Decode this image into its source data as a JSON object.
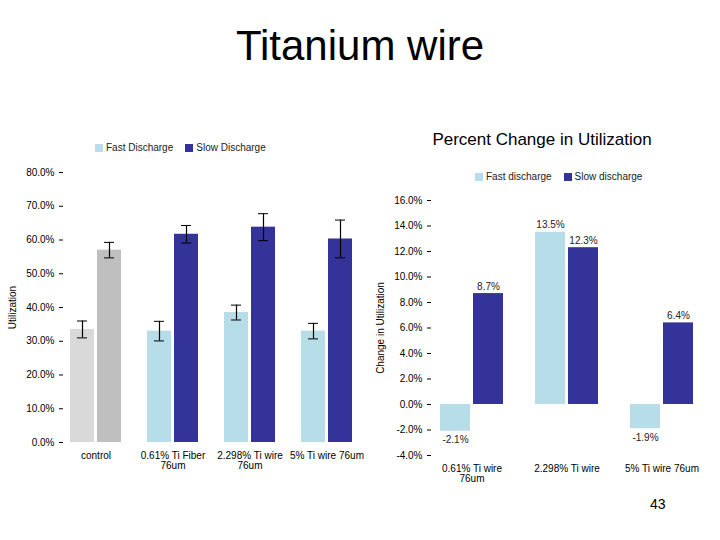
{
  "title": "Titanium wire",
  "page_number": 43,
  "chart_data": [
    {
      "type": "bar",
      "legend": "top",
      "ylabel": "Utilization",
      "categories": [
        "control",
        "0.61% Ti Fiber 76um",
        "2.298% Ti wire 76um",
        "5% Ti wire 76um"
      ],
      "series": [
        {
          "name": "Fast Discharge",
          "color": "#b7dde8",
          "colors": [
            "#d9d9d9",
            "#b7dde8",
            "#b7dde8",
            "#b7dde8"
          ],
          "values": [
            33.5,
            33,
            38.5,
            33
          ],
          "errors": [
            2.5,
            2.9,
            2.2,
            2.3
          ]
        },
        {
          "name": "Slow Discharge",
          "color": "#333399",
          "colors": [
            "#bfbfbf",
            "#333399",
            "#333399",
            "#333399"
          ],
          "values": [
            57,
            61.7,
            63.8,
            60.3
          ],
          "errors": [
            2.3,
            2.6,
            4,
            5.6
          ]
        }
      ],
      "ylim": [
        0,
        80
      ],
      "yticks": [
        {
          "value": 0,
          "label": "0.0%"
        },
        {
          "value": 10,
          "label": "10.0%"
        },
        {
          "value": 20,
          "label": "20.0%"
        },
        {
          "value": 30,
          "label": "30.0%"
        },
        {
          "value": 40,
          "label": "40.0%"
        },
        {
          "value": 50,
          "label": "50.0%"
        },
        {
          "value": 60,
          "label": "60.0%"
        },
        {
          "value": 70,
          "label": "70.0%"
        },
        {
          "value": 80,
          "label": "80.0%"
        }
      ]
    },
    {
      "type": "bar",
      "title": "Percent Change in Utilization",
      "legend": "top",
      "ylabel": "Change in Utilization",
      "data_labels": true,
      "categories": [
        "0.61% Ti wire 76um",
        "2.298% Ti wire",
        "5% Ti wire 76um"
      ],
      "series": [
        {
          "name": "Fast discharge",
          "color": "#b7dde8",
          "values": [
            -2.1,
            13.5,
            -1.9
          ],
          "value_labels": [
            "-2.1%",
            "13.5%",
            "-1.9%"
          ]
        },
        {
          "name": "Slow discharge",
          "color": "#333399",
          "values": [
            8.7,
            12.3,
            6.4
          ],
          "value_labels": [
            "8.7%",
            "12.3%",
            "6.4%"
          ]
        }
      ],
      "ylim": [
        -4,
        16
      ],
      "yticks": [
        {
          "value": -4,
          "label": "-4.0%"
        },
        {
          "value": -2,
          "label": "-2.0%"
        },
        {
          "value": 0,
          "label": "0.0%"
        },
        {
          "value": 2,
          "label": "2.0%"
        },
        {
          "value": 4,
          "label": "4.0%"
        },
        {
          "value": 6,
          "label": "6.0%"
        },
        {
          "value": 8,
          "label": "8.0%"
        },
        {
          "value": 10,
          "label": "10.0%"
        },
        {
          "value": 12,
          "label": "12.0%"
        },
        {
          "value": 14,
          "label": "14.0%"
        },
        {
          "value": 16,
          "label": "16.0%"
        }
      ]
    }
  ]
}
